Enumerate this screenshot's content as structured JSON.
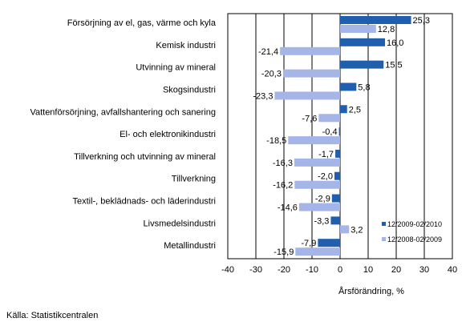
{
  "chart_data": {
    "type": "bar",
    "orientation": "horizontal",
    "categories": [
      "Försörjning av el, gas, värme och kyla",
      "Kemisk industri",
      "Utvinning av mineral",
      "Skogsindustri",
      "Vattenförsörjning, avfallshantering och sanering",
      "El- och elektronikindustri",
      "Tillverkning och utvinning av mineral",
      "Tillverkning",
      "Textil-, beklädnads- och läderindustri",
      "Livsmedelsindustri",
      "Metallindustri"
    ],
    "series": [
      {
        "name": "12/2009-02/2010",
        "color": "#1f5fae",
        "values": [
          25.3,
          16.0,
          15.5,
          5.8,
          2.5,
          -0.4,
          -1.7,
          -2.0,
          -2.9,
          -3.3,
          -7.9
        ],
        "labels": [
          "25,3",
          "16,0",
          "15,5",
          "5,8",
          "2,5",
          "-0,4",
          "-1,7",
          "-2,0",
          "-2,9",
          "-3,3",
          "-7,9"
        ]
      },
      {
        "name": "12/2008-02/2009",
        "color": "#a5b5e8",
        "values": [
          12.8,
          -21.4,
          -20.3,
          -23.3,
          -7.6,
          -18.5,
          -16.3,
          -16.2,
          -14.6,
          3.2,
          -15.9
        ],
        "labels": [
          "12,8",
          "-21,4",
          "-20,3",
          "-23,3",
          "-7,6",
          "-18,5",
          "-16,3",
          "-16,2",
          "-14,6",
          "3,2",
          "-15,9"
        ]
      }
    ],
    "xlim": [
      -40,
      40
    ],
    "xticks": [
      -40,
      -30,
      -20,
      -10,
      0,
      10,
      20,
      30,
      40
    ],
    "xtick_labels": [
      "-40",
      "-30",
      "-20",
      "-10",
      "0",
      "10",
      "20",
      "30",
      "40"
    ],
    "xlabel": "Årsförändring, %",
    "grid": "vertical",
    "legend_position": "bottom-right"
  },
  "source": "Källa: Statistikcentralen"
}
